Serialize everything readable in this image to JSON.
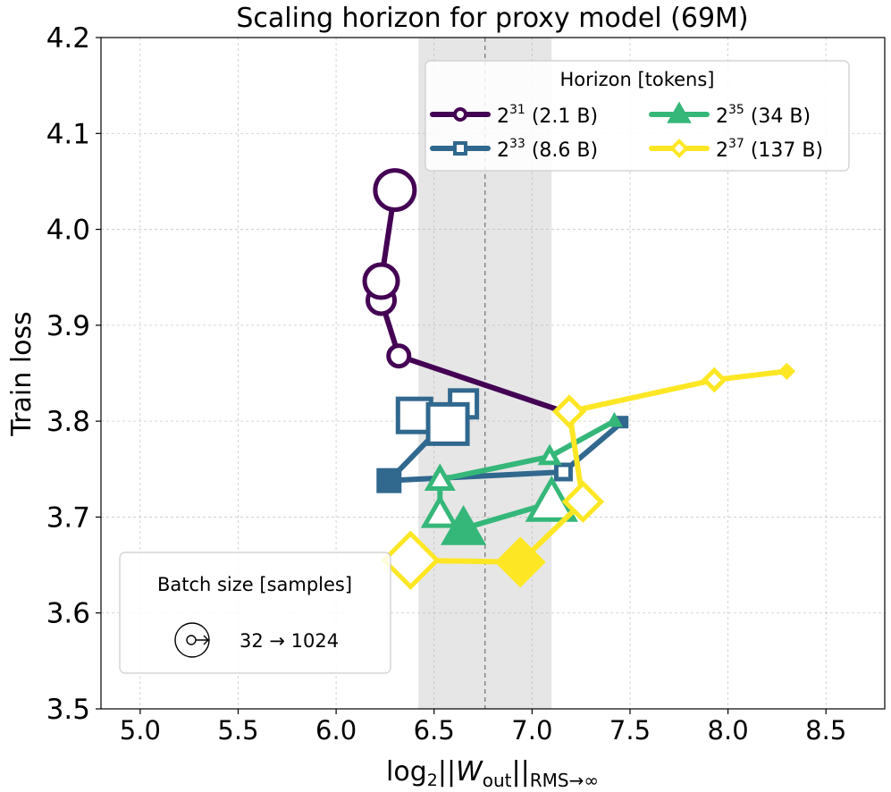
{
  "chart_data": {
    "type": "line",
    "title": "Scaling horizon for proxy model (69M)",
    "xlabel_parts": {
      "prefix": "log",
      "sub1": "2",
      "bars_open": "||",
      "W": "W",
      "wsub": "out",
      "bars_close": "||",
      "sub2": "RMS→∞"
    },
    "ylabel": "Train loss",
    "xlim": [
      4.8,
      8.8
    ],
    "ylim": [
      3.5,
      4.2
    ],
    "xticks": [
      "5.0",
      "5.5",
      "6.0",
      "6.5",
      "7.0",
      "7.5",
      "8.0",
      "8.5"
    ],
    "xtick_values": [
      5.0,
      5.5,
      6.0,
      6.5,
      7.0,
      7.5,
      8.0,
      8.5
    ],
    "yticks": [
      "3.5",
      "3.6",
      "3.7",
      "3.8",
      "3.9",
      "4.0",
      "4.1",
      "4.2"
    ],
    "ytick_values": [
      3.5,
      3.6,
      3.7,
      3.8,
      3.9,
      4.0,
      4.1,
      4.2
    ],
    "grid": true,
    "shaded_band": {
      "x_range": [
        6.42,
        7.1
      ],
      "color": "#e6e6e6"
    },
    "vline": {
      "x": 6.76,
      "style": "dashed",
      "color": "#808080"
    },
    "batch_sizes": [
      32,
      64,
      128,
      256,
      512,
      1024
    ],
    "series": [
      {
        "name": "Horizon 2^31",
        "legend_base": "2",
        "legend_exp": "31",
        "legend_suffix": " (2.1 B)",
        "color": "#440154",
        "marker": "circle",
        "x": [
          7.19,
          6.32,
          6.23,
          6.23,
          6.3
        ],
        "y": [
          3.808,
          3.868,
          3.926,
          3.946,
          4.041
        ],
        "batch": [
          32,
          128,
          256,
          512,
          1024
        ]
      },
      {
        "name": "Horizon 2^33",
        "legend_base": "2",
        "legend_exp": "33",
        "legend_suffix": " (8.6 B)",
        "color": "#30688e",
        "marker": "square",
        "x": [
          7.46,
          7.16,
          6.27,
          6.65,
          6.4,
          6.57
        ],
        "y": [
          3.799,
          3.747,
          3.738,
          3.818,
          3.806,
          3.797
        ],
        "batch": [
          32,
          64,
          128,
          256,
          512,
          1024
        ]
      },
      {
        "name": "Horizon 2^35",
        "legend_base": "2",
        "legend_exp": "35",
        "legend_suffix": " (34 B)",
        "color": "#35b779",
        "marker": "triangle",
        "x": [
          7.42,
          7.09,
          6.53,
          6.53,
          6.65,
          7.1
        ],
        "y": [
          3.8,
          3.763,
          3.739,
          3.703,
          3.688,
          3.715
        ],
        "batch": [
          32,
          64,
          128,
          256,
          512,
          1024
        ]
      },
      {
        "name": "Horizon 2^37",
        "legend_base": "2",
        "legend_exp": "37",
        "legend_suffix": " (137 B)",
        "color": "#fde725",
        "marker": "diamond",
        "x": [
          8.3,
          7.93,
          7.19,
          7.26,
          6.94,
          6.38
        ],
        "y": [
          3.852,
          3.843,
          3.81,
          3.716,
          3.653,
          3.655
        ],
        "batch": [
          32,
          64,
          128,
          256,
          512,
          1024
        ]
      }
    ],
    "legend": {
      "title": "Horizon [tokens]",
      "position": "top-right"
    },
    "size_legend": {
      "title": "Batch size [samples]",
      "range_text": "32 → 1024",
      "position": "bottom-left"
    }
  }
}
